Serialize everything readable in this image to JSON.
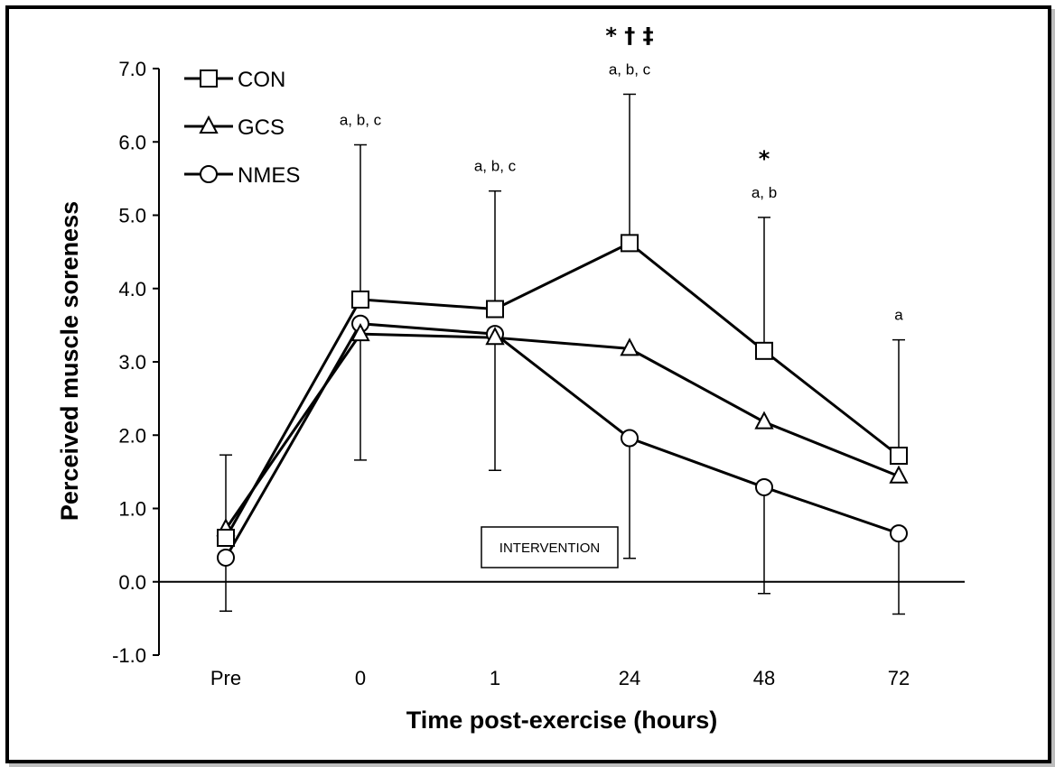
{
  "chart_data": {
    "type": "line",
    "title": "",
    "xlabel": "Time post-exercise (hours)",
    "ylabel": "Perceived muscle soreness",
    "categories": [
      "Pre",
      "0",
      "1",
      "24",
      "48",
      "72"
    ],
    "ylim": [
      -1.0,
      7.0
    ],
    "yticks": [
      -1.0,
      0.0,
      1.0,
      2.0,
      3.0,
      4.0,
      5.0,
      6.0,
      7.0
    ],
    "ytick_labels": [
      "-1.0",
      "0.0",
      "1.0",
      "2.0",
      "3.0",
      "4.0",
      "5.0",
      "6.0",
      "7.0"
    ],
    "series": [
      {
        "name": "CON",
        "marker": "square",
        "values": [
          0.6,
          3.85,
          3.72,
          4.62,
          3.15,
          1.72
        ],
        "error_upper": [
          1.73,
          5.96,
          5.33,
          6.65,
          4.97,
          3.3
        ]
      },
      {
        "name": "GCS",
        "marker": "triangle",
        "values": [
          0.72,
          3.38,
          3.33,
          3.18,
          2.18,
          1.44
        ],
        "error_lower": [
          null,
          null,
          null,
          null,
          null,
          null
        ]
      },
      {
        "name": "NMES",
        "marker": "circle",
        "values": [
          0.33,
          3.52,
          3.38,
          1.96,
          1.29,
          0.66
        ],
        "error_lower": [
          -0.4,
          1.66,
          1.52,
          0.32,
          -0.16,
          -0.44
        ]
      }
    ],
    "annotations": [
      {
        "category": "0",
        "letters": "a, b, c",
        "symbols": ""
      },
      {
        "category": "1",
        "letters": "a, b, c",
        "symbols": ""
      },
      {
        "category": "24",
        "letters": "a, b, c",
        "symbols": "* † ‡"
      },
      {
        "category": "48",
        "letters": "a, b",
        "symbols": "*"
      },
      {
        "category": "72",
        "letters": "a",
        "symbols": ""
      }
    ],
    "intervention_label": "INTERVENTION",
    "legend_position": "top-left",
    "grid": false
  }
}
